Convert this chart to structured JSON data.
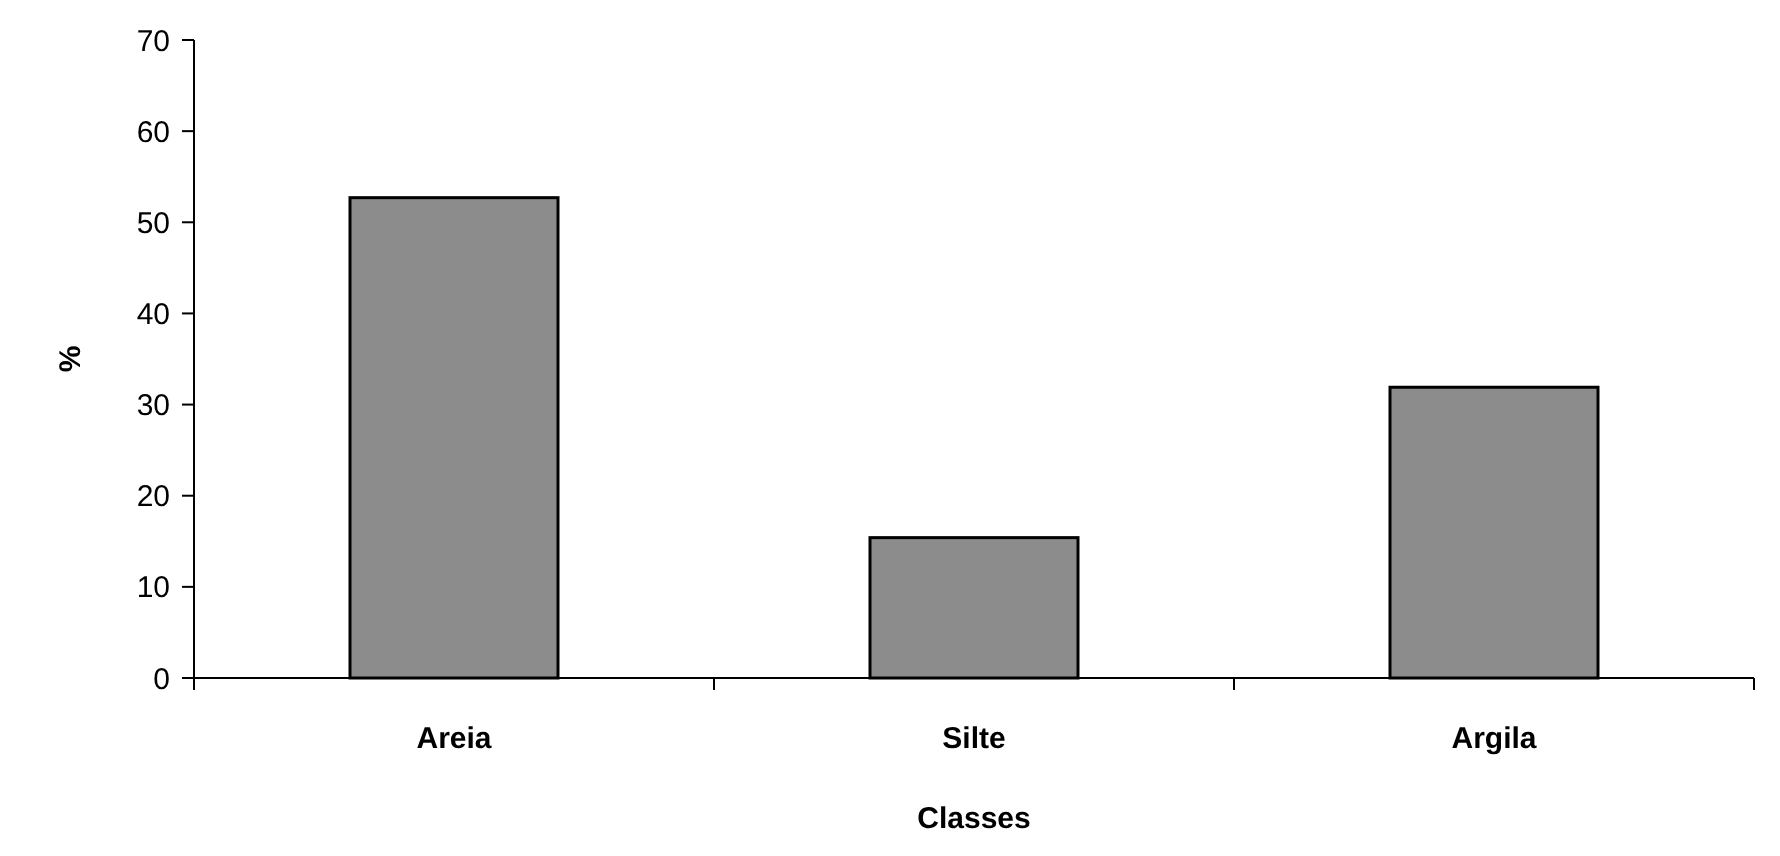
{
  "chart_data": {
    "type": "bar",
    "xlabel": "Classes",
    "ylabel": "%",
    "categories": [
      "Areia",
      "Silte",
      "Argila"
    ],
    "values": [
      52.7,
      15.4,
      31.9
    ],
    "color": "#8c8c8c",
    "ylim": [
      0,
      70
    ],
    "yticks": [
      0,
      10,
      20,
      30,
      40,
      50,
      60,
      70
    ],
    "grid": false
  }
}
